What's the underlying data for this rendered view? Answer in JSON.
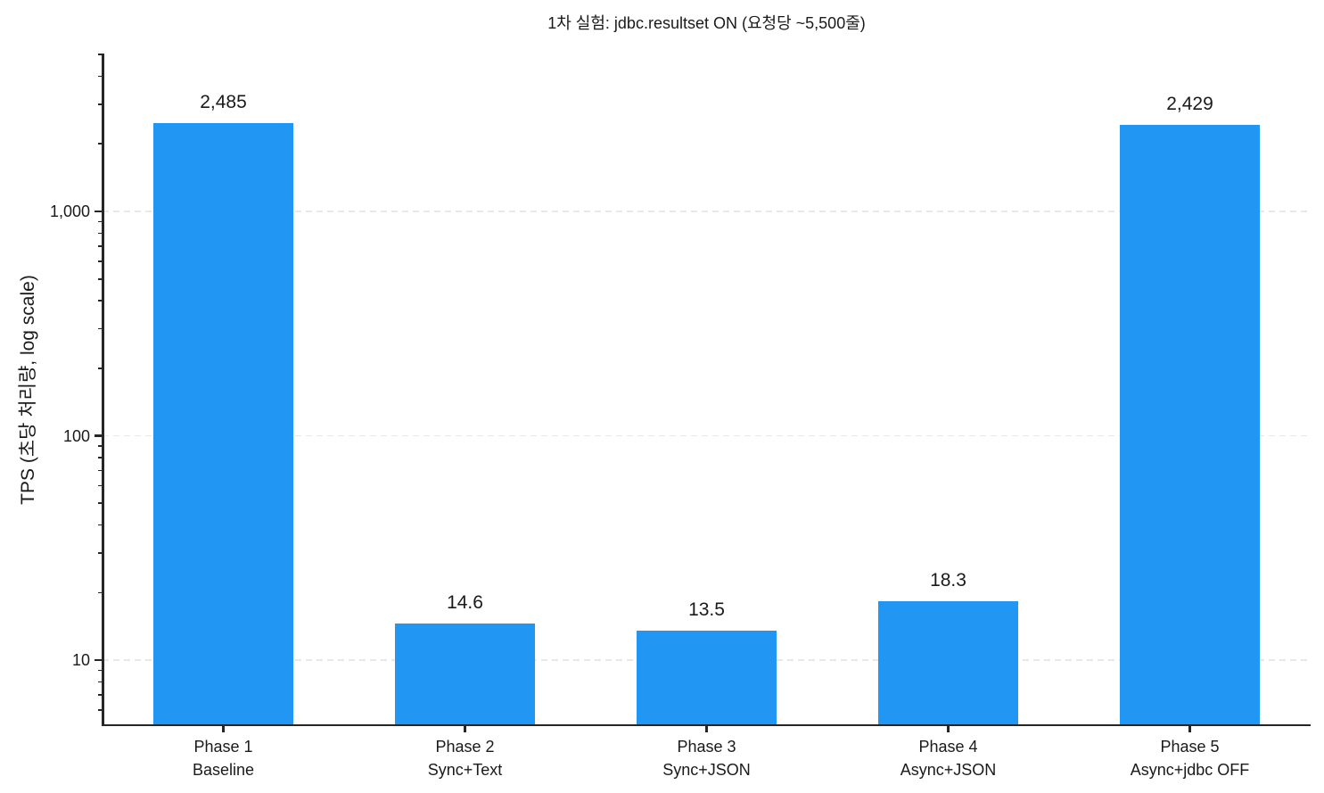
{
  "chart_data": {
    "type": "bar",
    "title": "1차 실험: jdbc.resultset ON (요청당 ~5,500줄)",
    "ylabel": "TPS (초당 처리량, log scale)",
    "xlabel": "",
    "yscale": "log",
    "ylim": [
      5.13,
      5055
    ],
    "grid": "horizontal dashed lines at major ticks",
    "legend": "none",
    "categories": [
      "Phase 1\nBaseline",
      "Phase 2\nSync+Text",
      "Phase 3\nSync+JSON",
      "Phase 4\nAsync+JSON",
      "Phase 5\nAsync+jdbc OFF"
    ],
    "values": [
      2485,
      14.6,
      13.5,
      18.3,
      2429
    ],
    "value_labels": [
      "2,485",
      "14.6",
      "13.5",
      "18.3",
      "2,429"
    ],
    "y_ticks": [
      {
        "value": 10,
        "label": "10"
      },
      {
        "value": 100,
        "label": "100"
      },
      {
        "value": 1000,
        "label": "1,000"
      }
    ],
    "colors": {
      "bar": "#2196F3",
      "grid": "#e8e8e8",
      "axis": "#262626",
      "text": "#1a1a1a"
    }
  }
}
